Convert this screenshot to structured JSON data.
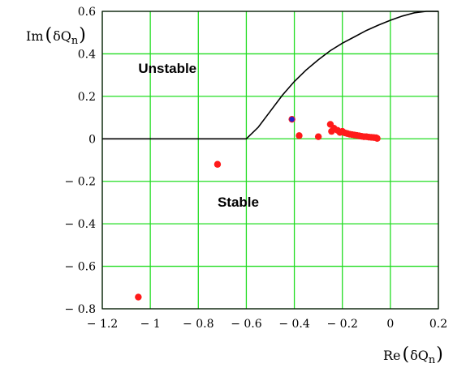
{
  "chart_data": {
    "type": "scatter",
    "xlabel_parts": [
      "Re",
      "δQ",
      "n"
    ],
    "ylabel_parts": [
      "Im",
      "δQ",
      "n"
    ],
    "xlim": [
      -1.2,
      0.2
    ],
    "ylim": [
      -0.8,
      0.6
    ],
    "xticks": [
      -1.2,
      -1,
      -0.8,
      -0.6,
      -0.4,
      -0.2,
      0,
      0.2
    ],
    "yticks": [
      -0.8,
      -0.6,
      -0.4,
      -0.2,
      0,
      0.2,
      0.4,
      0.6
    ],
    "xtick_labels": [
      "− 1.2",
      "− 1",
      "− 0.8",
      "− 0.6",
      "− 0.4",
      "− 0.2",
      "0",
      "0.2"
    ],
    "ytick_labels": [
      "− 0.8",
      "− 0.6",
      "− 0.4",
      "− 0.2",
      "0",
      "0.2",
      "0.4",
      "0.6"
    ],
    "grid": true,
    "grid_color": "#22dd22",
    "annotations": [
      {
        "text": "Unstable",
        "x": -1.05,
        "y": 0.31
      },
      {
        "text": "Stable",
        "x": -0.72,
        "y": -0.32
      }
    ],
    "boundary_curve": {
      "color": "#000000",
      "x": [
        -1.2,
        -0.6,
        -0.55,
        -0.5,
        -0.45,
        -0.4,
        -0.35,
        -0.3,
        -0.25,
        -0.2,
        -0.15,
        -0.1,
        -0.05,
        0.0,
        0.05,
        0.1,
        0.15,
        0.2
      ],
      "y": [
        0.0,
        0.0,
        0.055,
        0.13,
        0.205,
        0.27,
        0.325,
        0.372,
        0.415,
        0.45,
        0.48,
        0.51,
        0.535,
        0.558,
        0.578,
        0.593,
        0.6,
        0.6
      ]
    },
    "series": [
      {
        "color": "#ff1a1a",
        "x": [
          -1.05,
          -0.72,
          -0.41,
          -0.38,
          -0.3,
          -0.25,
          -0.245,
          -0.235,
          -0.22,
          -0.21,
          -0.2,
          -0.19,
          -0.18,
          -0.17,
          -0.16,
          -0.15,
          -0.14,
          -0.13,
          -0.12,
          -0.11,
          -0.1,
          -0.09,
          -0.08,
          -0.07,
          -0.06,
          -0.055
        ],
        "y": [
          -0.745,
          -0.12,
          0.092,
          0.015,
          0.01,
          0.068,
          0.035,
          0.05,
          0.04,
          0.03,
          0.035,
          0.028,
          0.025,
          0.022,
          0.02,
          0.018,
          0.016,
          0.014,
          0.012,
          0.01,
          0.01,
          0.008,
          0.007,
          0.006,
          0.005,
          0.002
        ]
      },
      {
        "color": "#2222cc",
        "x": [
          -0.41
        ],
        "y": [
          0.092
        ]
      }
    ]
  }
}
